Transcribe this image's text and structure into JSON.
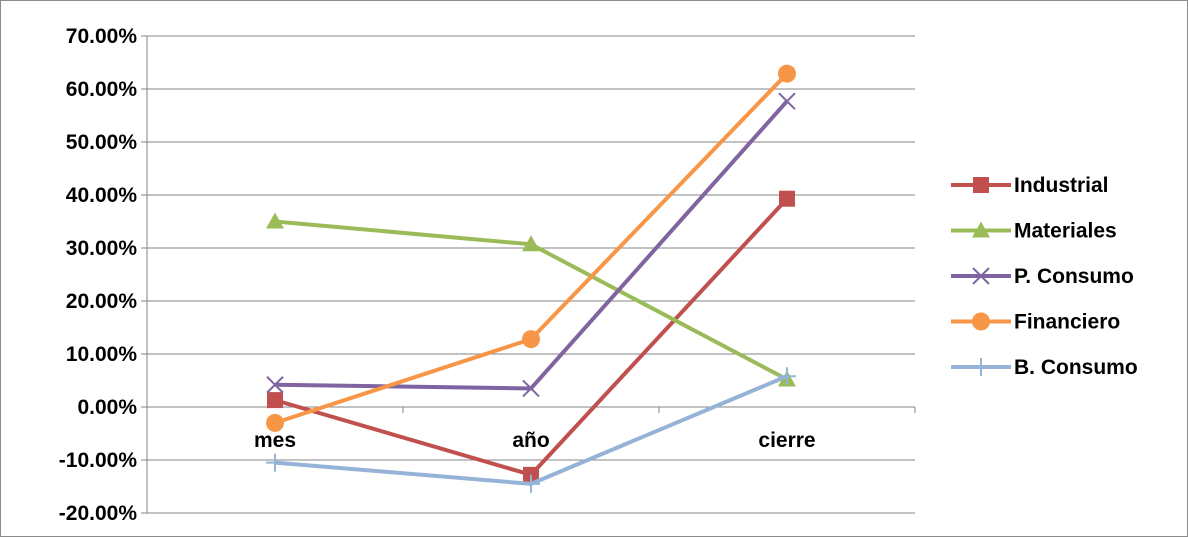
{
  "chart_data": {
    "type": "line",
    "categories": [
      "mes",
      "año",
      "cierre"
    ],
    "ylim": [
      -20,
      70
    ],
    "ytick_values": [
      70,
      60,
      50,
      40,
      30,
      20,
      10,
      0,
      -10,
      -20
    ],
    "ytick_labels": [
      "70.00%",
      "60.00%",
      "50.00%",
      "40.00%",
      "30.00%",
      "20.00%",
      "10.00%",
      "0.00%",
      "-10.00%",
      "-20.00%"
    ],
    "grid": true,
    "legend_position": "right",
    "series": [
      {
        "name": "Industrial",
        "values": [
          1.3,
          -12.8,
          39.3
        ],
        "color": "#C0504D",
        "marker": "square"
      },
      {
        "name": "Materiales",
        "values": [
          35.0,
          30.7,
          5.2
        ],
        "color": "#9BBB59",
        "marker": "triangle"
      },
      {
        "name": "P. Consumo",
        "values": [
          4.2,
          3.5,
          57.7
        ],
        "color": "#8064A2",
        "marker": "x"
      },
      {
        "name": "Financiero",
        "values": [
          -3.0,
          12.8,
          62.9
        ],
        "color": "#F79646",
        "marker": "circle"
      },
      {
        "name": "B. Consumo",
        "values": [
          -10.5,
          -14.5,
          5.8
        ],
        "color": "#95B3D7",
        "marker": "plus"
      }
    ]
  }
}
